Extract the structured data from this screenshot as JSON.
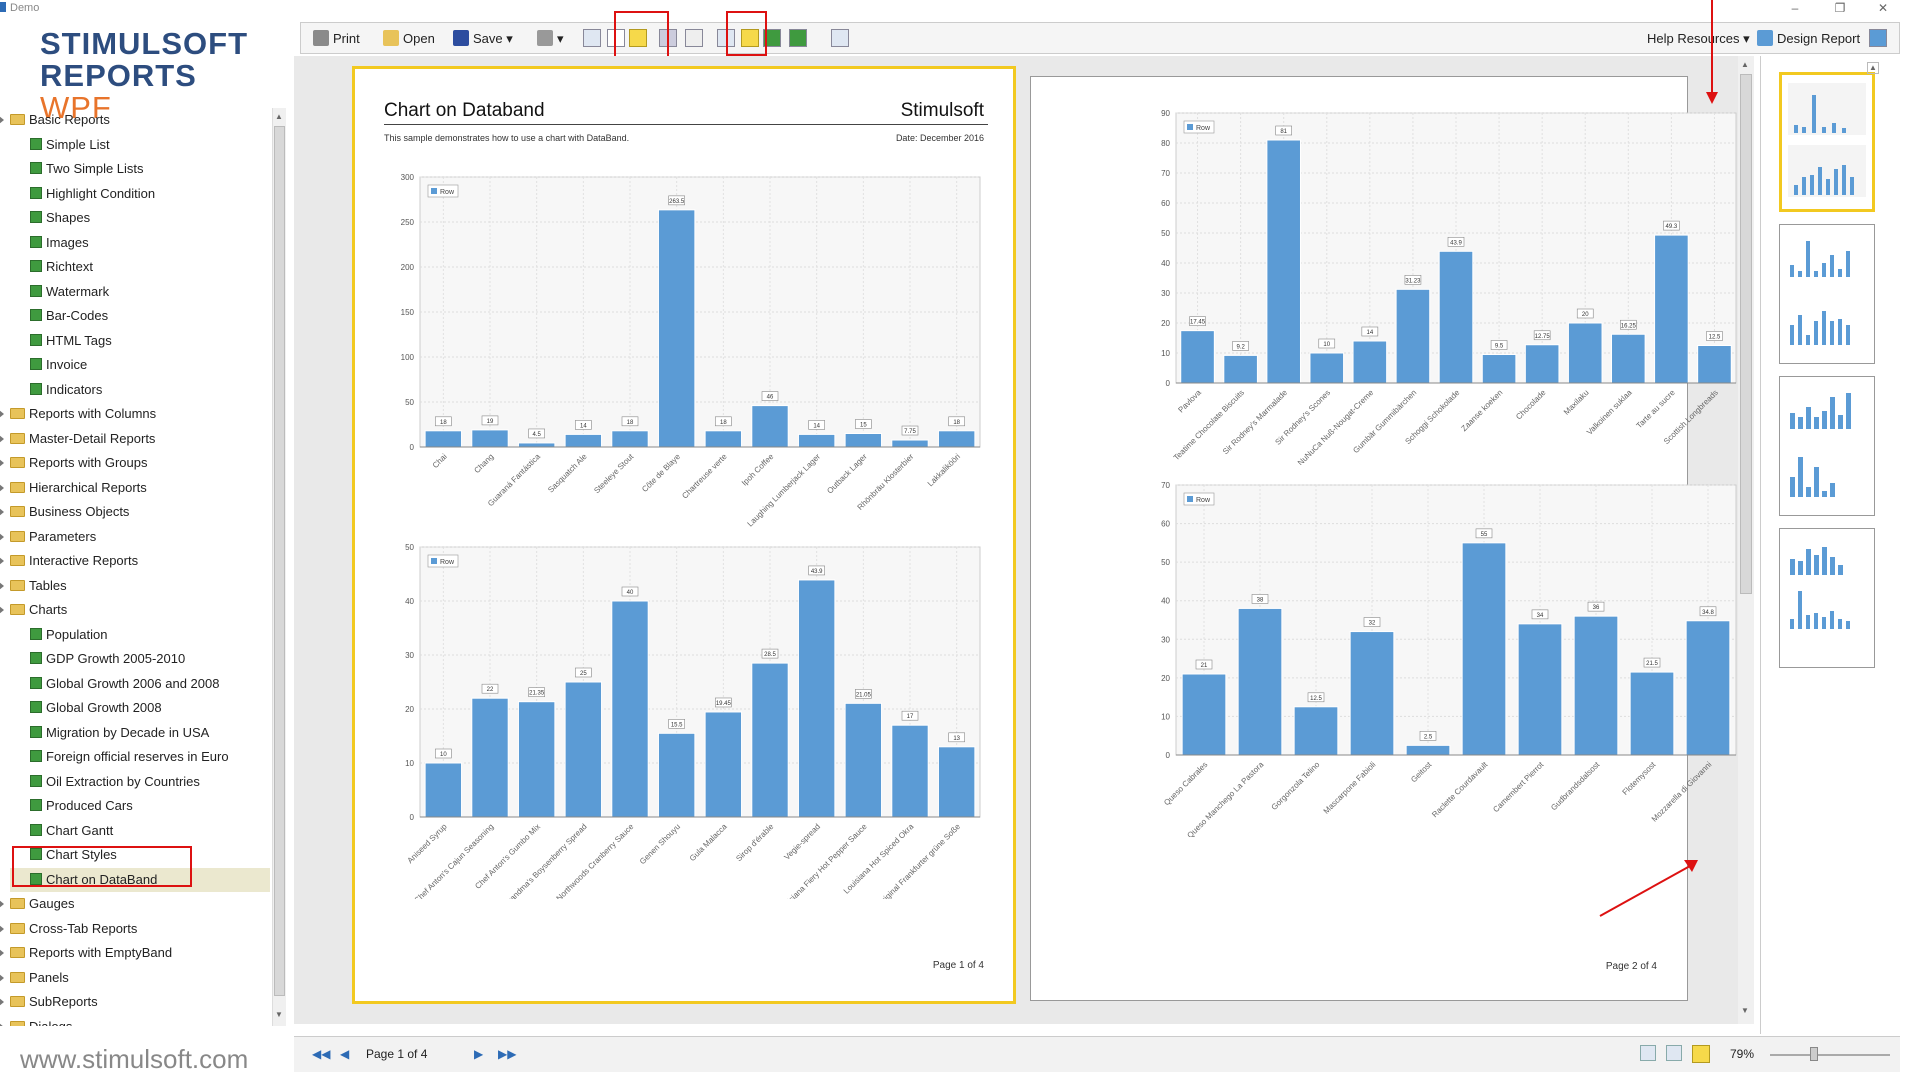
{
  "window": {
    "title": "Demo"
  },
  "logo": {
    "line1": "STIMULSOFT",
    "line2a": "REPORTS",
    "line2b": "WPF"
  },
  "website": "www.stimulsoft.com",
  "tree": [
    {
      "label": "Basic Reports",
      "type": "folder",
      "level": 0
    },
    {
      "label": "Simple List",
      "type": "report",
      "level": 1
    },
    {
      "label": "Two Simple Lists",
      "type": "report",
      "level": 1
    },
    {
      "label": "Highlight Condition",
      "type": "report",
      "level": 1
    },
    {
      "label": "Shapes",
      "type": "report",
      "level": 1
    },
    {
      "label": "Images",
      "type": "report",
      "level": 1
    },
    {
      "label": "Richtext",
      "type": "report",
      "level": 1
    },
    {
      "label": "Watermark",
      "type": "report",
      "level": 1
    },
    {
      "label": "Bar-Codes",
      "type": "report",
      "level": 1
    },
    {
      "label": "HTML Tags",
      "type": "report",
      "level": 1
    },
    {
      "label": "Invoice",
      "type": "report",
      "level": 1
    },
    {
      "label": "Indicators",
      "type": "report",
      "level": 1
    },
    {
      "label": "Reports with Columns",
      "type": "folder",
      "level": 0
    },
    {
      "label": "Master-Detail Reports",
      "type": "folder",
      "level": 0
    },
    {
      "label": "Reports with Groups",
      "type": "folder",
      "level": 0
    },
    {
      "label": "Hierarchical Reports",
      "type": "folder",
      "level": 0
    },
    {
      "label": "Business Objects",
      "type": "folder",
      "level": 0
    },
    {
      "label": "Parameters",
      "type": "folder",
      "level": 0
    },
    {
      "label": "Interactive Reports",
      "type": "folder",
      "level": 0
    },
    {
      "label": "Tables",
      "type": "folder",
      "level": 0
    },
    {
      "label": "Charts",
      "type": "folder",
      "level": 0
    },
    {
      "label": "Population",
      "type": "report",
      "level": 1
    },
    {
      "label": "GDP Growth 2005-2010",
      "type": "report",
      "level": 1
    },
    {
      "label": "Global Growth 2006 and 2008",
      "type": "report",
      "level": 1
    },
    {
      "label": "Global Growth 2008",
      "type": "report",
      "level": 1
    },
    {
      "label": "Migration by Decade in USA",
      "type": "report",
      "level": 1
    },
    {
      "label": "Foreign official reserves in Euro",
      "type": "report",
      "level": 1
    },
    {
      "label": "Oil Extraction by Countries",
      "type": "report",
      "level": 1
    },
    {
      "label": "Produced Cars",
      "type": "report",
      "level": 1
    },
    {
      "label": "Chart Gantt",
      "type": "report",
      "level": 1
    },
    {
      "label": "Chart Styles",
      "type": "report",
      "level": 1
    },
    {
      "label": "Chart on DataBand",
      "type": "report",
      "level": 1,
      "selected": true
    },
    {
      "label": "Gauges",
      "type": "folder",
      "level": 0
    },
    {
      "label": "Cross-Tab Reports",
      "type": "folder",
      "level": 0
    },
    {
      "label": "Reports with EmptyBand",
      "type": "folder",
      "level": 0
    },
    {
      "label": "Panels",
      "type": "folder",
      "level": 0
    },
    {
      "label": "SubReports",
      "type": "folder",
      "level": 0
    },
    {
      "label": "Dialogs",
      "type": "folder",
      "level": 0
    }
  ],
  "toolbar": {
    "print": "Print",
    "open": "Open",
    "save": "Save",
    "help": "Help Resources",
    "design": "Design Report"
  },
  "status": {
    "page": "Page 1 of 4",
    "zoom": "79%"
  },
  "page1": {
    "title": "Chart on Databand",
    "brand": "Stimulsoft",
    "description": "This sample demonstrates how to use a chart with DataBand.",
    "date": "Date: December 2016",
    "footer": "Page 1 of 4"
  },
  "page2": {
    "footer": "Page 2 of 4"
  },
  "colors": {
    "bar": "#5b9bd5",
    "accent": "#f2c920",
    "annotation": "#d11111"
  },
  "chart_data": [
    {
      "type": "bar",
      "legend": "Row",
      "ylim": [
        0,
        300
      ],
      "yticks": [
        0,
        50,
        100,
        150,
        200,
        250,
        300
      ],
      "categories": [
        "Chai",
        "Chang",
        "Guaraná Fantástica",
        "Sasquatch Ale",
        "Steeleye Stout",
        "Côte de Blaye",
        "Chartreuse verte",
        "Ipoh Coffee",
        "Laughing Lumberjack Lager",
        "Outback Lager",
        "Rhönbräu Klosterbier",
        "Lakkalikööri"
      ],
      "values": [
        18,
        19,
        4.5,
        14,
        18,
        263.5,
        18,
        46,
        14,
        15,
        7.75,
        18
      ],
      "labels": [
        "18",
        "19",
        "4.5",
        "14",
        "18",
        "263.5",
        "18",
        "46",
        "14",
        "15",
        "7.75",
        "18"
      ]
    },
    {
      "type": "bar",
      "legend": "Row",
      "ylim": [
        0,
        50
      ],
      "yticks": [
        0,
        10,
        20,
        30,
        40,
        50
      ],
      "categories": [
        "Aniseed Syrup",
        "Chef Anton's Cajun Seasoning",
        "Chef Anton's Gumbo Mix",
        "Grandma's Boysenberry Spread",
        "Northwoods Cranberry Sauce",
        "Genen Shouyu",
        "Gula Malacca",
        "Sirop d'érable",
        "Vegie-spread",
        "Louisiana Fiery Hot Pepper Sauce",
        "Louisiana Hot Spiced Okra",
        "Original Frankfurter grüne Soße"
      ],
      "values": [
        10,
        22,
        21.35,
        25,
        40,
        15.5,
        19.45,
        28.5,
        43.9,
        21.05,
        17,
        13
      ],
      "labels": [
        "10",
        "22",
        "21.35",
        "25",
        "40",
        "15.5",
        "19.45",
        "28.5",
        "43.9",
        "21.05",
        "17",
        "13"
      ]
    },
    {
      "type": "bar",
      "legend": "Row",
      "ylim": [
        0,
        90
      ],
      "yticks": [
        0,
        10,
        20,
        30,
        40,
        50,
        60,
        70,
        80,
        90
      ],
      "categories": [
        "Pavlova",
        "Teatime Chocolate Biscuits",
        "Sir Rodney's Marmalade",
        "Sir Rodney's Scones",
        "NuNuCa Nuß-Nougat-Creme",
        "Gumbär Gummibärchen",
        "Schoggi Schokolade",
        "Zaanse koeken",
        "Chocolade",
        "Maxilaku",
        "Valkoinen suklaa",
        "Tarte au sucre",
        "Scottish Longbreads"
      ],
      "values": [
        17.45,
        9.2,
        81,
        10,
        14,
        31.23,
        43.9,
        9.5,
        12.75,
        20,
        16.25,
        49.3,
        12.5
      ],
      "labels": [
        "17.45",
        "9.2",
        "81",
        "10",
        "14",
        "31.23",
        "43.9",
        "9.5",
        "12.75",
        "20",
        "16.25",
        "49.3",
        "12.5"
      ]
    },
    {
      "type": "bar",
      "legend": "Row",
      "ylim": [
        0,
        70
      ],
      "yticks": [
        0,
        10,
        20,
        30,
        40,
        50,
        60,
        70
      ],
      "categories": [
        "Queso Cabrales",
        "Queso Manchego La Pastora",
        "Gorgonzola Telino",
        "Mascarpone Fabioli",
        "Geitost",
        "Raclette Courdavault",
        "Camembert Pierrot",
        "Gudbrandsdalsost",
        "Flotemysost",
        "Mozzarella di Giovanni"
      ],
      "values": [
        21,
        38,
        12.5,
        32,
        2.5,
        55,
        34,
        36,
        21.5,
        34.8
      ],
      "labels": [
        "21",
        "38",
        "12.5",
        "32",
        "2.5",
        "55",
        "34",
        "36",
        "21.5",
        "34.8"
      ]
    }
  ]
}
